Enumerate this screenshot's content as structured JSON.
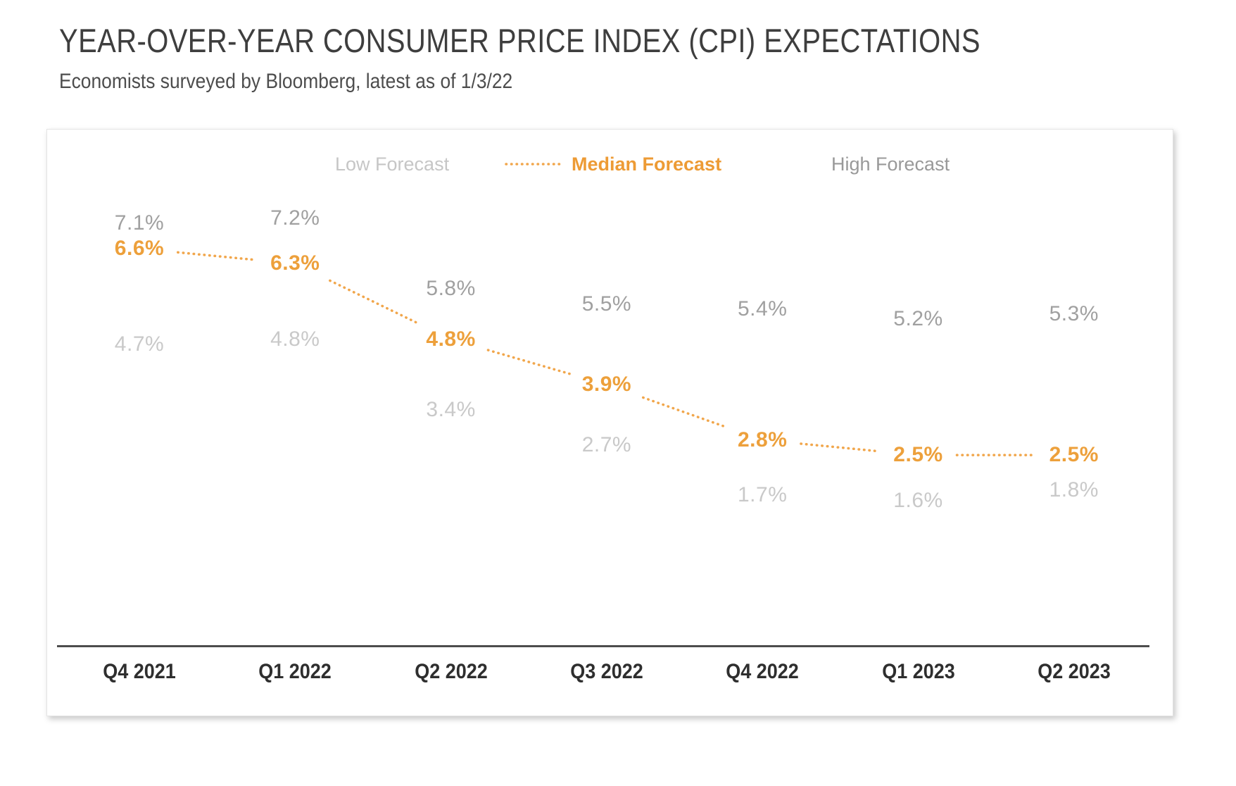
{
  "header": {
    "title": "YEAR-OVER-YEAR CONSUMER PRICE INDEX (CPI) EXPECTATIONS",
    "subtitle": "Economists surveyed by Bloomberg, latest as of 1/3/22"
  },
  "legend": {
    "low_label": "Low Forecast",
    "median_label": "Median Forecast",
    "high_label": "High Forecast"
  },
  "colors": {
    "median_orange": "#eda03b",
    "median_dots": "#f1a64b",
    "high_gray": "#a0a0a0",
    "low_gray": "#c9c9c9",
    "legend_low": "#c6c6c6",
    "legend_high": "#999999",
    "title_gray": "#3e3e3e",
    "axis_line": "#4d4d4d"
  },
  "chart_data": {
    "type": "line",
    "title": "YEAR-OVER-YEAR CONSUMER PRICE INDEX (CPI) EXPECTATIONS",
    "subtitle": "Economists surveyed by Bloomberg, latest as of 1/3/22",
    "categories": [
      "Q4 2021",
      "Q1 2022",
      "Q2 2022",
      "Q3 2022",
      "Q4 2022",
      "Q1 2023",
      "Q2 2023"
    ],
    "value_format": "percent",
    "grid": false,
    "legend_position": "top",
    "xlabel": "",
    "ylabel": "",
    "series": [
      {
        "name": "High Forecast",
        "style": "labels-only",
        "color": "#a0a0a0",
        "values": [
          7.1,
          7.2,
          5.8,
          5.5,
          5.4,
          5.2,
          5.3
        ],
        "labels": [
          "7.1%",
          "7.2%",
          "5.8%",
          "5.5%",
          "5.4%",
          "5.2%",
          "5.3%"
        ]
      },
      {
        "name": "Median Forecast",
        "style": "dotted-line-with-labels",
        "color": "#eda03b",
        "values": [
          6.6,
          6.3,
          4.8,
          3.9,
          2.8,
          2.5,
          2.5
        ],
        "labels": [
          "6.6%",
          "6.3%",
          "4.8%",
          "3.9%",
          "2.8%",
          "2.5%",
          "2.5%"
        ]
      },
      {
        "name": "Low Forecast",
        "style": "labels-only",
        "color": "#c9c9c9",
        "values": [
          4.7,
          4.8,
          3.4,
          2.7,
          1.7,
          1.6,
          1.8
        ],
        "labels": [
          "4.7%",
          "4.8%",
          "3.4%",
          "2.7%",
          "1.7%",
          "1.6%",
          "1.8%"
        ]
      }
    ]
  }
}
